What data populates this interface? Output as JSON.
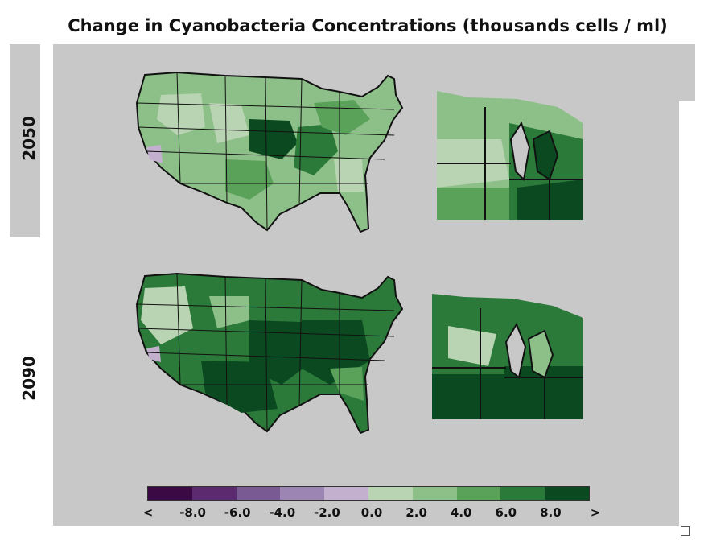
{
  "title": "Change in Cyanobacteria Concentrations (thousands cells / ml)",
  "years": [
    "2050",
    "2090"
  ],
  "legend": {
    "colors": [
      "#3b0a45",
      "#5c2a6e",
      "#7a5a92",
      "#9c84b3",
      "#c2b0ce",
      "#b9d4b2",
      "#8dc089",
      "#5aa25a",
      "#2c7a3a",
      "#0b4a20"
    ],
    "labels": [
      "<",
      "-8.0",
      "-6.0",
      "-4.0",
      "-2.0",
      "0.0",
      "2.0",
      "4.0",
      "6.0",
      "8.0",
      ">"
    ]
  },
  "map_colors": {
    "light": "#b9d4b2",
    "mid": "#8dc089",
    "green": "#5aa25a",
    "dark": "#2c7a3a",
    "darkest": "#0b4a20",
    "purple": "#c2b0ce",
    "background": "#c8c8c8"
  }
}
